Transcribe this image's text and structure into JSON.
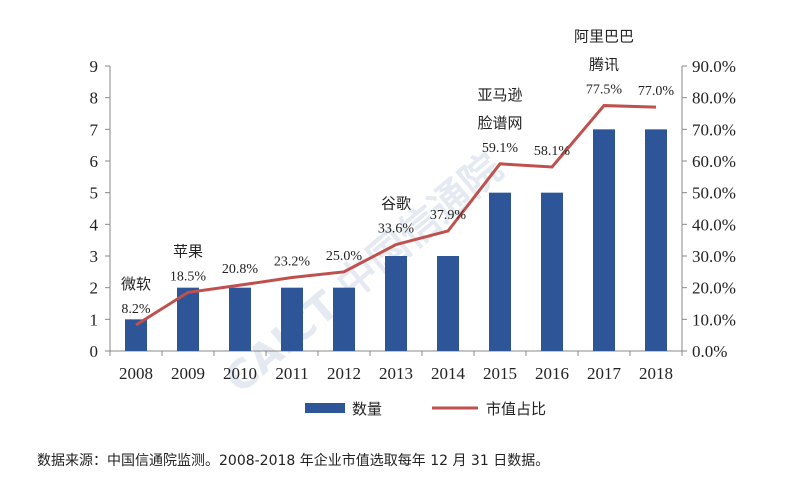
{
  "chart_data": {
    "type": "bar+line",
    "categories": [
      "2008",
      "2009",
      "2010",
      "2011",
      "2012",
      "2013",
      "2014",
      "2015",
      "2016",
      "2017",
      "2018"
    ],
    "series": [
      {
        "name": "数量",
        "type": "bar",
        "axis": "left",
        "color": "#2e5597",
        "values": [
          1,
          2,
          2,
          2,
          2,
          3,
          3,
          5,
          5,
          7,
          7
        ]
      },
      {
        "name": "市值占比",
        "type": "line",
        "axis": "right",
        "color": "#c0504d",
        "values": [
          8.2,
          18.5,
          20.8,
          23.2,
          25.0,
          33.6,
          37.9,
          59.1,
          58.1,
          77.5,
          77.0
        ],
        "labels": [
          "8.2%",
          "18.5%",
          "20.8%",
          "23.2%",
          "25.0%",
          "33.6%",
          "37.9%",
          "59.1%",
          "58.1%",
          "77.5%",
          "77.0%"
        ]
      }
    ],
    "y_left": {
      "min": 0,
      "max": 9,
      "ticks": [
        "0",
        "1",
        "2",
        "3",
        "4",
        "5",
        "6",
        "7",
        "8",
        "9"
      ]
    },
    "y_right": {
      "min": 0,
      "max": 90,
      "ticks": [
        "0.0%",
        "10.0%",
        "20.0%",
        "30.0%",
        "40.0%",
        "50.0%",
        "60.0%",
        "70.0%",
        "80.0%",
        "90.0%"
      ]
    },
    "annotations": [
      {
        "category": "2008",
        "lines": [
          "微软"
        ]
      },
      {
        "category": "2009",
        "lines": [
          "苹果"
        ]
      },
      {
        "category": "2013",
        "lines": [
          "谷歌"
        ]
      },
      {
        "category": "2015",
        "lines": [
          "亚马逊",
          "脸谱网"
        ]
      },
      {
        "category": "2017",
        "lines": [
          "阿里巴巴",
          "腾讯"
        ]
      }
    ],
    "legend": {
      "position": "bottom"
    },
    "grid": false
  },
  "watermark": "CAICT 中国信通院",
  "source_note": "数据来源：中国信通院监测。2008-2018 年企业市值选取每年 12 月 31 日数据。"
}
